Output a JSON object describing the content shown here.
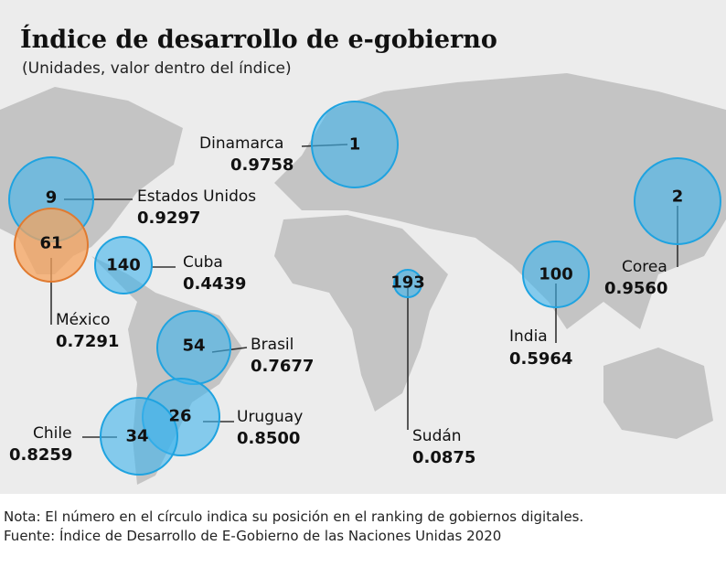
{
  "header": {
    "title": "Índice de desarrollo de e-gobierno",
    "subtitle": "(Unidades, valor dentro del índice)"
  },
  "countries": [
    {
      "name": "Dinamarca",
      "rank": "1",
      "value": "0.9758"
    },
    {
      "name": "Estados Unidos",
      "rank": "9",
      "value": "0.9297"
    },
    {
      "name": "México",
      "rank": "61",
      "value": "0.7291"
    },
    {
      "name": "Cuba",
      "rank": "140",
      "value": "0.4439"
    },
    {
      "name": "Brasil",
      "rank": "54",
      "value": "0.7677"
    },
    {
      "name": "Uruguay",
      "rank": "26",
      "value": "0.8500"
    },
    {
      "name": "Chile",
      "rank": "34",
      "value": "0.8259"
    },
    {
      "name": "Sudán",
      "rank": "193",
      "value": "0.0875"
    },
    {
      "name": "India",
      "rank": "100",
      "value": "0.5964"
    },
    {
      "name": "Corea",
      "rank": "2",
      "value": "0.9560"
    }
  ],
  "colors": {
    "bubble": "#3fb4ec",
    "highlight": "#f7a45f",
    "land": "#c4c4c4",
    "ocean": "#ececec"
  },
  "footer": {
    "note": "Nota: El número en el círculo indica su posición en el ranking de gobiernos digitales.",
    "source": "Fuente: Índice de Desarrollo de E-Gobierno de las Naciones Unidas 2020"
  }
}
